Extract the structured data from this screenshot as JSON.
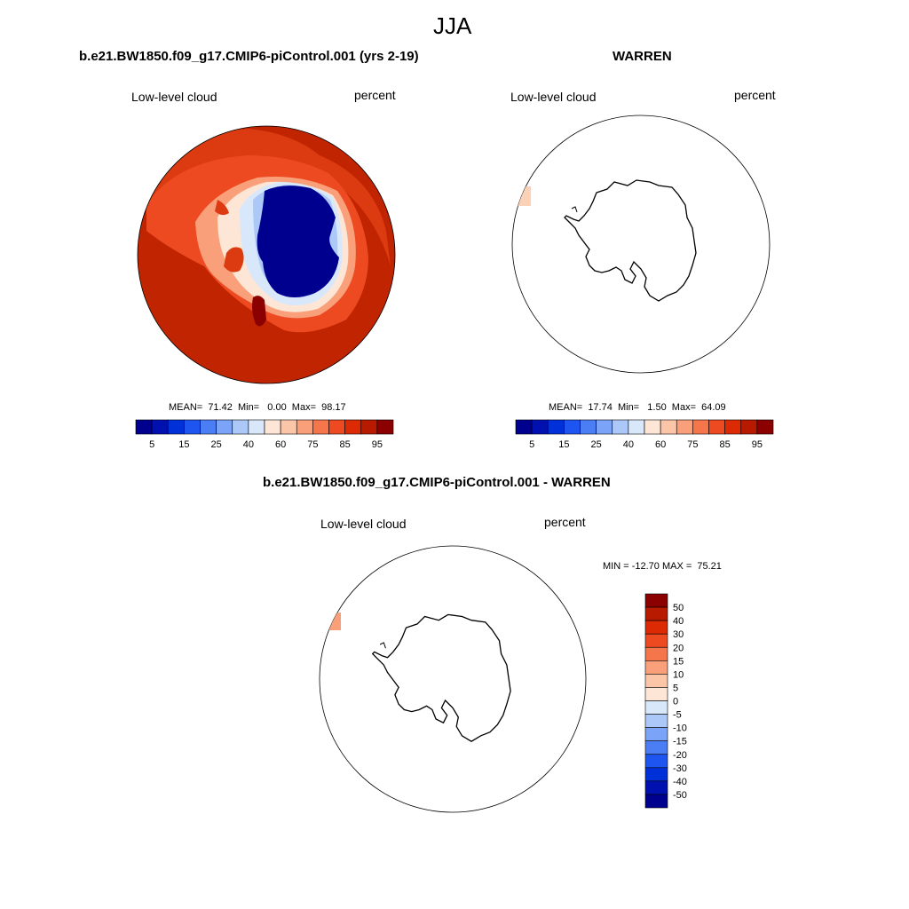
{
  "figure": {
    "season": "JJA",
    "model_case_title": "b.e21.BW1850.f09_g17.CMIP6-piControl.001 (yrs 2-19)",
    "obs_title": "WARREN",
    "diff_title": "b.e21.BW1850.f09_g17.CMIP6-piControl.001 - WARREN"
  },
  "panels": {
    "model": {
      "variable": "Low-level cloud",
      "units": "percent",
      "stats_text": "MEAN=  71.42  Min=   0.00  Max=  98.17"
    },
    "obs": {
      "variable": "Low-level cloud",
      "units": "percent",
      "stats_text": "MEAN=  17.74  Min=   1.50  Max=  64.09"
    },
    "diff": {
      "variable": "Low-level cloud",
      "units": "percent",
      "minmax_text": "MIN = -12.70 MAX =  75.21"
    }
  },
  "chart_data": [
    {
      "type": "heatmap",
      "projection": "south-polar-stereographic",
      "title": "b.e21.BW1850.f09_g17.CMIP6-piControl.001 (yrs 2-19)",
      "variable": "Low-level cloud",
      "units": "percent",
      "mean": 71.42,
      "min": 0.0,
      "max": 98.17,
      "colorbar": {
        "orientation": "horizontal",
        "levels": [
          5,
          10,
          15,
          20,
          25,
          30,
          40,
          50,
          60,
          70,
          75,
          80,
          85,
          90,
          95
        ],
        "tick_labels": [
          "5",
          "15",
          "25",
          "40",
          "60",
          "75",
          "85",
          "95"
        ],
        "colors": [
          "#00008f",
          "#0011b0",
          "#0030d8",
          "#1e55f0",
          "#4b7df5",
          "#7ba3f7",
          "#acc8f8",
          "#d8e8fa",
          "#fde6d6",
          "#fbc6a8",
          "#f9a07a",
          "#f6764b",
          "#ee4a22",
          "#dc2a05",
          "#b81a00",
          "#8b0000"
        ]
      }
    },
    {
      "type": "heatmap",
      "projection": "south-polar-stereographic",
      "title": "WARREN",
      "variable": "Low-level cloud",
      "units": "percent",
      "mean": 17.74,
      "min": 1.5,
      "max": 64.09,
      "colorbar": {
        "orientation": "horizontal",
        "levels": [
          5,
          10,
          15,
          20,
          25,
          30,
          40,
          50,
          60,
          70,
          75,
          80,
          85,
          90,
          95
        ],
        "tick_labels": [
          "5",
          "15",
          "25",
          "40",
          "60",
          "75",
          "85",
          "95"
        ],
        "colors": [
          "#00008f",
          "#0011b0",
          "#0030d8",
          "#1e55f0",
          "#4b7df5",
          "#7ba3f7",
          "#acc8f8",
          "#d8e8fa",
          "#fde6d6",
          "#fbc6a8",
          "#f9a07a",
          "#f6764b",
          "#ee4a22",
          "#dc2a05",
          "#b81a00",
          "#8b0000"
        ]
      }
    },
    {
      "type": "heatmap",
      "projection": "south-polar-stereographic",
      "title": "b.e21.BW1850.f09_g17.CMIP6-piControl.001 - WARREN",
      "variable": "Low-level cloud",
      "units": "percent",
      "min": -12.7,
      "max": 75.21,
      "colorbar": {
        "orientation": "vertical",
        "tick_labels": [
          "50",
          "40",
          "30",
          "20",
          "15",
          "10",
          "5",
          "0",
          "-5",
          "-10",
          "-15",
          "-20",
          "-30",
          "-40",
          "-50"
        ],
        "colors": [
          "#8b0000",
          "#b81a00",
          "#dc2a05",
          "#ee4a22",
          "#f6764b",
          "#f9a07a",
          "#fbc6a8",
          "#fde6d6",
          "#d8e8fa",
          "#acc8f8",
          "#7ba3f7",
          "#4b7df5",
          "#1e55f0",
          "#0030d8",
          "#0011b0",
          "#00008f"
        ]
      }
    }
  ]
}
